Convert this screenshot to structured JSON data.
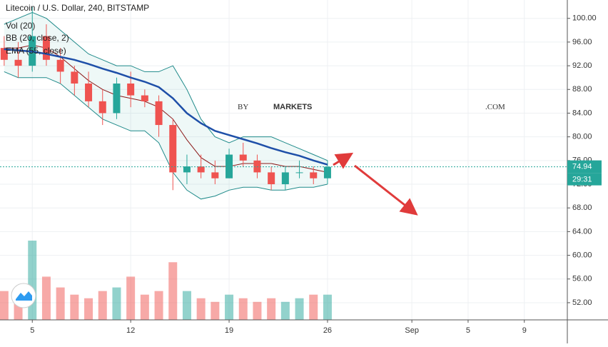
{
  "chart_data": {
    "type": "candlestick",
    "title": "Litecoin / U.S. Dollar, 240, BITSTAMP",
    "categories": [
      null,
      null,
      "5",
      null,
      null,
      null,
      null,
      null,
      null,
      "12",
      null,
      null,
      null,
      null,
      null,
      null,
      "19",
      null,
      null,
      null,
      null,
      null,
      null,
      "26",
      null,
      null,
      null,
      null,
      null,
      "Sep",
      null,
      null,
      null,
      "5",
      null,
      null,
      null,
      "9",
      null,
      null,
      null
    ],
    "open": [
      95,
      93,
      92,
      97,
      93,
      91,
      89,
      86,
      84,
      89,
      87,
      86,
      82,
      74,
      75,
      74,
      73,
      77,
      76,
      74,
      72,
      74,
      74,
      73,
      null,
      null,
      null,
      null,
      null,
      null,
      null,
      null,
      null,
      null,
      null,
      null,
      null,
      null,
      null,
      null,
      null
    ],
    "high": [
      97,
      96,
      102,
      99,
      95,
      92,
      91,
      88,
      90,
      91,
      88,
      87,
      83,
      77,
      77,
      76,
      78,
      79,
      77,
      75,
      75,
      76,
      75,
      76,
      null,
      null,
      null,
      null,
      null,
      null,
      null,
      null,
      null,
      null,
      null,
      null,
      null,
      null,
      null,
      null,
      null
    ],
    "low": [
      92,
      90,
      91,
      92,
      89,
      87,
      85,
      82,
      83,
      85,
      85,
      80,
      71,
      72,
      73,
      72,
      73,
      75,
      73,
      71,
      71,
      73,
      72,
      72,
      null,
      null,
      null,
      null,
      null,
      null,
      null,
      null,
      null,
      null,
      null,
      null,
      null,
      null,
      null,
      null,
      null
    ],
    "close": [
      93,
      92,
      97,
      93,
      91,
      89,
      86,
      84,
      89,
      87,
      86,
      82,
      74,
      75,
      74,
      73,
      77,
      76,
      74,
      72,
      74,
      74,
      73,
      74.94,
      null,
      null,
      null,
      null,
      null,
      null,
      null,
      null,
      null,
      null,
      null,
      null,
      null,
      null,
      null,
      null,
      null
    ],
    "up_color": "#26a69a",
    "down_color": "#ef5350",
    "volume": {
      "name": "Vol (20)",
      "values": [
        40,
        30,
        110,
        60,
        45,
        35,
        30,
        40,
        45,
        60,
        35,
        40,
        80,
        40,
        30,
        25,
        35,
        30,
        25,
        30,
        25,
        30,
        35,
        35,
        null,
        null,
        null,
        null,
        null,
        null,
        null,
        null,
        null,
        null,
        null,
        null,
        null,
        null,
        null,
        null,
        null
      ]
    },
    "bollinger": {
      "name": "BB (20, close, 2)",
      "color": "#1f8a8a",
      "basis_color": "#8b1a1a",
      "fill": "rgba(38,166,154,0.08)",
      "upper": [
        99,
        100,
        101,
        100,
        98,
        96,
        94,
        93,
        92,
        92,
        91,
        91,
        92,
        88,
        83,
        80,
        79,
        80,
        80,
        80,
        79,
        78,
        77,
        76,
        null,
        null,
        null,
        null,
        null,
        null,
        null,
        null,
        null,
        null,
        null,
        null,
        null,
        null,
        null,
        null,
        null
      ],
      "basis": [
        95,
        95,
        95.5,
        95,
        93.5,
        91.5,
        89.5,
        88,
        87,
        86.5,
        86,
        85,
        83,
        79.5,
        76.5,
        75,
        75,
        75.5,
        75.5,
        75.5,
        75,
        75,
        74.5,
        74,
        null,
        null,
        null,
        null,
        null,
        null,
        null,
        null,
        null,
        null,
        null,
        null,
        null,
        null,
        null,
        null,
        null
      ],
      "lower": [
        91,
        90,
        90,
        90,
        89,
        87,
        85,
        83,
        82,
        81,
        81,
        79,
        74,
        71,
        69.5,
        70,
        71,
        71.5,
        71.5,
        71,
        71,
        71.5,
        71.5,
        72,
        null,
        null,
        null,
        null,
        null,
        null,
        null,
        null,
        null,
        null,
        null,
        null,
        null,
        null,
        null,
        null,
        null
      ]
    },
    "ema": {
      "name": "EMA (55, close)",
      "color": "#1e4fa8",
      "values": [
        94.8,
        94.6,
        94.4,
        94,
        93.5,
        93,
        92.3,
        91.5,
        90.8,
        90,
        89.3,
        88.4,
        86.5,
        84,
        82.3,
        81,
        80.3,
        79.6,
        78.9,
        78.1,
        77.4,
        76.8,
        76,
        75.3,
        null,
        null,
        null,
        null,
        null,
        null,
        null,
        null,
        null,
        null,
        null,
        null,
        null,
        null,
        null,
        null,
        null
      ]
    },
    "countdown": "29:31",
    "watermark": [
      "BY",
      "MARKETS",
      ".COM"
    ],
    "ylim": [
      49.1,
      103.1
    ],
    "yticks": [
      {
        "value": 52,
        "label": "52.00"
      },
      {
        "value": 56,
        "label": "56.00"
      },
      {
        "value": 60,
        "label": "60.00"
      },
      {
        "value": 64,
        "label": "64.00"
      },
      {
        "value": 68,
        "label": "68.00"
      },
      {
        "value": 72,
        "label": "72.00"
      },
      {
        "value": 76,
        "label": "76.00"
      },
      {
        "value": 80,
        "label": "80.00"
      },
      {
        "value": 84,
        "label": "84.00"
      },
      {
        "value": 88,
        "label": "88.00"
      },
      {
        "value": 92,
        "label": "92.00"
      },
      {
        "value": 96,
        "label": "96.00"
      },
      {
        "value": 100,
        "label": "100.00"
      }
    ],
    "grid": true
  }
}
